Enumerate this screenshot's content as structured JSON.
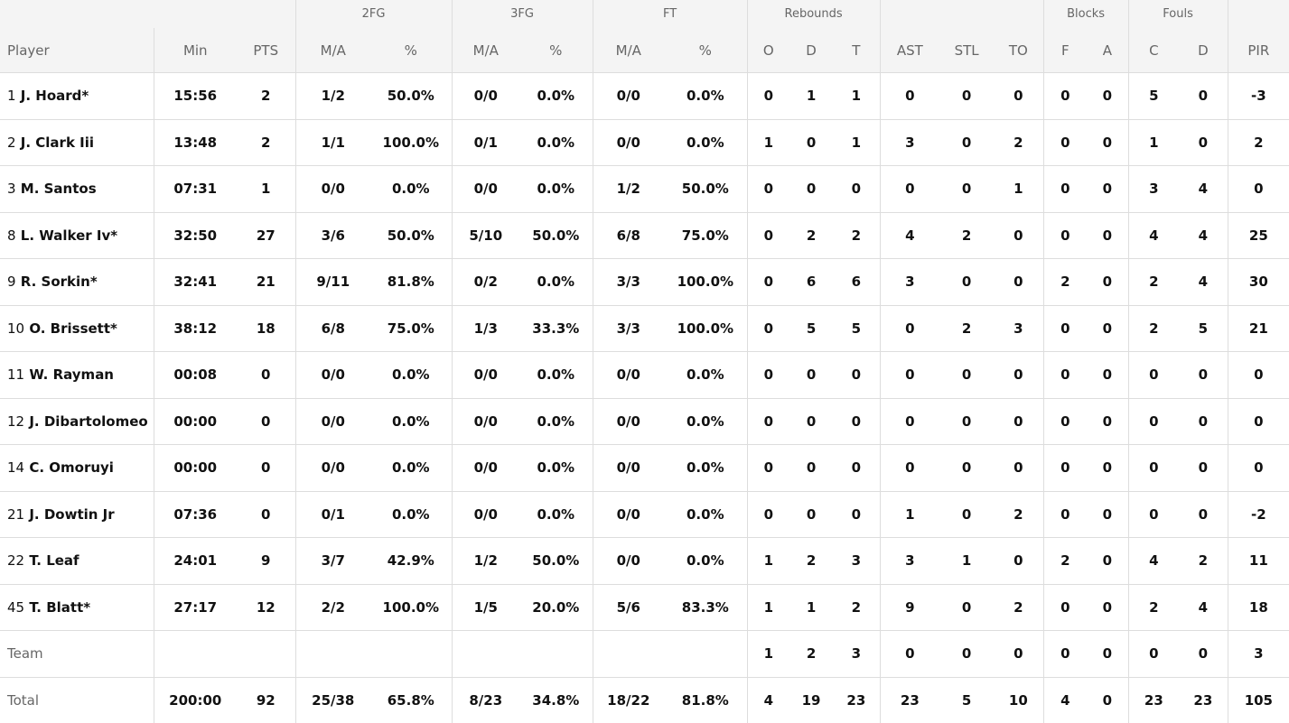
{
  "groups": {
    "fg2": "2FG",
    "fg3": "3FG",
    "ft": "FT",
    "reb": "Rebounds",
    "blk": "Blocks",
    "fouls": "Fouls"
  },
  "columns": [
    "Player",
    "Min",
    "PTS",
    "M/A",
    "%",
    "M/A",
    "%",
    "M/A",
    "%",
    "O",
    "D",
    "T",
    "AST",
    "STL",
    "TO",
    "F",
    "A",
    "C",
    "D",
    "PIR"
  ],
  "players": [
    {
      "num": "1",
      "name": "J. Hoard*",
      "stats": [
        "15:56",
        "2",
        "1/2",
        "50.0%",
        "0/0",
        "0.0%",
        "0/0",
        "0.0%",
        "0",
        "1",
        "1",
        "0",
        "0",
        "0",
        "0",
        "0",
        "5",
        "0",
        "-3"
      ]
    },
    {
      "num": "2",
      "name": "J. Clark Iii",
      "stats": [
        "13:48",
        "2",
        "1/1",
        "100.0%",
        "0/1",
        "0.0%",
        "0/0",
        "0.0%",
        "1",
        "0",
        "1",
        "3",
        "0",
        "2",
        "0",
        "0",
        "1",
        "0",
        "2"
      ]
    },
    {
      "num": "3",
      "name": "M. Santos",
      "stats": [
        "07:31",
        "1",
        "0/0",
        "0.0%",
        "0/0",
        "0.0%",
        "1/2",
        "50.0%",
        "0",
        "0",
        "0",
        "0",
        "0",
        "1",
        "0",
        "0",
        "3",
        "4",
        "0"
      ]
    },
    {
      "num": "8",
      "name": "L. Walker Iv*",
      "stats": [
        "32:50",
        "27",
        "3/6",
        "50.0%",
        "5/10",
        "50.0%",
        "6/8",
        "75.0%",
        "0",
        "2",
        "2",
        "4",
        "2",
        "0",
        "0",
        "0",
        "4",
        "4",
        "25"
      ]
    },
    {
      "num": "9",
      "name": "R. Sorkin*",
      "stats": [
        "32:41",
        "21",
        "9/11",
        "81.8%",
        "0/2",
        "0.0%",
        "3/3",
        "100.0%",
        "0",
        "6",
        "6",
        "3",
        "0",
        "0",
        "2",
        "0",
        "2",
        "4",
        "30"
      ]
    },
    {
      "num": "10",
      "name": "O. Brissett*",
      "stats": [
        "38:12",
        "18",
        "6/8",
        "75.0%",
        "1/3",
        "33.3%",
        "3/3",
        "100.0%",
        "0",
        "5",
        "5",
        "0",
        "2",
        "3",
        "0",
        "0",
        "2",
        "5",
        "21"
      ]
    },
    {
      "num": "11",
      "name": "W. Rayman",
      "stats": [
        "00:08",
        "0",
        "0/0",
        "0.0%",
        "0/0",
        "0.0%",
        "0/0",
        "0.0%",
        "0",
        "0",
        "0",
        "0",
        "0",
        "0",
        "0",
        "0",
        "0",
        "0",
        "0"
      ]
    },
    {
      "num": "12",
      "name": "J. Dibartolomeo",
      "stats": [
        "00:00",
        "0",
        "0/0",
        "0.0%",
        "0/0",
        "0.0%",
        "0/0",
        "0.0%",
        "0",
        "0",
        "0",
        "0",
        "0",
        "0",
        "0",
        "0",
        "0",
        "0",
        "0"
      ]
    },
    {
      "num": "14",
      "name": "C. Omoruyi",
      "stats": [
        "00:00",
        "0",
        "0/0",
        "0.0%",
        "0/0",
        "0.0%",
        "0/0",
        "0.0%",
        "0",
        "0",
        "0",
        "0",
        "0",
        "0",
        "0",
        "0",
        "0",
        "0",
        "0"
      ]
    },
    {
      "num": "21",
      "name": "J. Dowtin Jr",
      "stats": [
        "07:36",
        "0",
        "0/1",
        "0.0%",
        "0/0",
        "0.0%",
        "0/0",
        "0.0%",
        "0",
        "0",
        "0",
        "1",
        "0",
        "2",
        "0",
        "0",
        "0",
        "0",
        "-2"
      ]
    },
    {
      "num": "22",
      "name": "T. Leaf",
      "stats": [
        "24:01",
        "9",
        "3/7",
        "42.9%",
        "1/2",
        "50.0%",
        "0/0",
        "0.0%",
        "1",
        "2",
        "3",
        "3",
        "1",
        "0",
        "2",
        "0",
        "4",
        "2",
        "11"
      ]
    },
    {
      "num": "45",
      "name": "T. Blatt*",
      "stats": [
        "27:17",
        "12",
        "2/2",
        "100.0%",
        "1/5",
        "20.0%",
        "5/6",
        "83.3%",
        "1",
        "1",
        "2",
        "9",
        "0",
        "2",
        "0",
        "0",
        "2",
        "4",
        "18"
      ]
    }
  ],
  "team": {
    "label": "Team",
    "stats": [
      "",
      "",
      "",
      "",
      "",
      "",
      "",
      "",
      "1",
      "2",
      "3",
      "0",
      "0",
      "0",
      "0",
      "0",
      "0",
      "0",
      "3"
    ]
  },
  "total": {
    "label": "Total",
    "stats": [
      "200:00",
      "92",
      "25/38",
      "65.8%",
      "8/23",
      "34.8%",
      "18/22",
      "81.8%",
      "4",
      "19",
      "23",
      "23",
      "5",
      "10",
      "4",
      "0",
      "23",
      "23",
      "105"
    ]
  }
}
